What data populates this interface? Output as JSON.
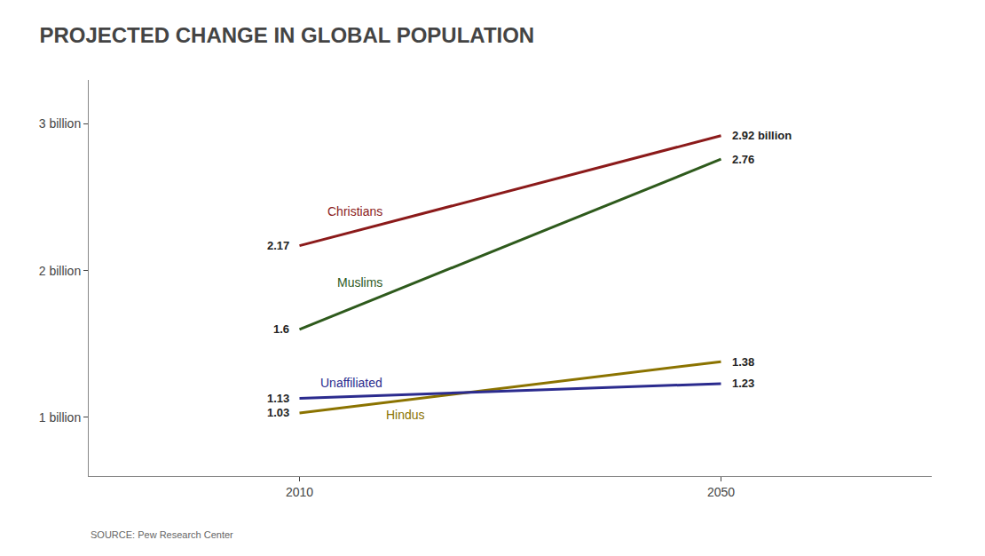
{
  "chart_data": {
    "type": "line",
    "title": "PROJECTED CHANGE IN GLOBAL POPULATION",
    "source": "SOURCE: Pew Research Center",
    "x": [
      2010,
      2050
    ],
    "series": [
      {
        "name": "Christians",
        "color": "#8B1A1A",
        "values": [
          2.17,
          2.92
        ],
        "value_labels": [
          "2.17",
          "2.92 billion"
        ]
      },
      {
        "name": "Muslims",
        "color": "#2E5A1C",
        "values": [
          1.6,
          2.76
        ],
        "value_labels": [
          "1.6",
          "2.76"
        ]
      },
      {
        "name": "Hindus",
        "color": "#8B7300",
        "values": [
          1.03,
          1.38
        ],
        "value_labels": [
          "1.03",
          "1.38"
        ]
      },
      {
        "name": "Unaffiliated",
        "color": "#2B2B8E",
        "values": [
          1.13,
          1.23
        ],
        "value_labels": [
          "1.13",
          "1.23"
        ]
      }
    ],
    "xlim": [
      1990,
      2070
    ],
    "xticks": [
      2010,
      2050
    ],
    "ylim": [
      0.6,
      3.3
    ],
    "yticks": [
      {
        "value": 1.0,
        "label": "1 billion"
      },
      {
        "value": 2.0,
        "label": "2 billion"
      },
      {
        "value": 3.0,
        "label": "3 billion"
      }
    ],
    "data_labels": true,
    "grid": false
  }
}
